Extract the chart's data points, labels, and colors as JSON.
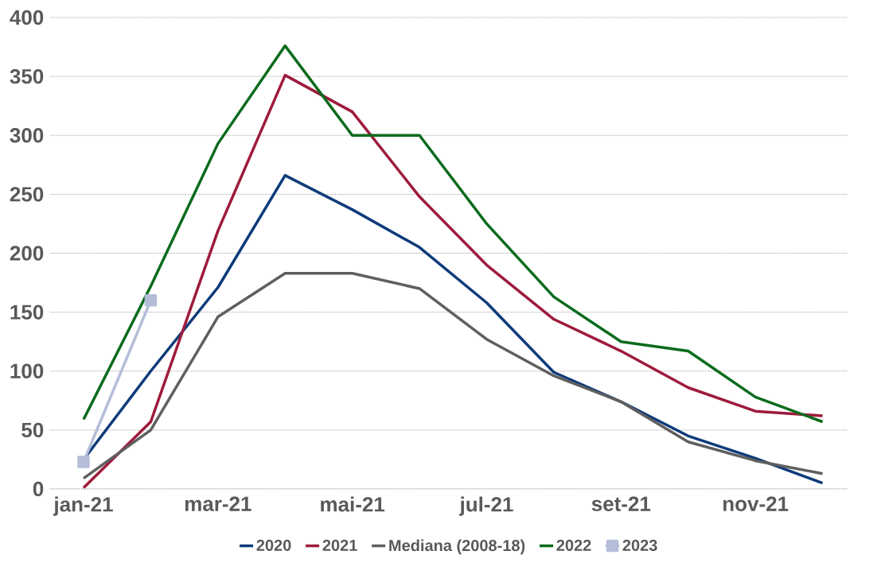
{
  "chart_data": {
    "type": "line",
    "categories": [
      "jan-21",
      null,
      "mar-21",
      null,
      "mai-21",
      null,
      "jul-21",
      null,
      "set-21",
      null,
      "nov-21",
      null
    ],
    "series": [
      {
        "name": "2020",
        "color": "#0e3b7a",
        "values": [
          25,
          100,
          171,
          266,
          237,
          205,
          158,
          99,
          74,
          45,
          26,
          5
        ]
      },
      {
        "name": "2021",
        "color": "#9e1b3c",
        "values": [
          1,
          57,
          219,
          351,
          320,
          248,
          190,
          144,
          117,
          86,
          66,
          62
        ]
      },
      {
        "name": "Mediana (2008-18)",
        "color": "#5f5f5f",
        "values": [
          9,
          50,
          146,
          183,
          183,
          170,
          127,
          96,
          74,
          40,
          24,
          13
        ]
      },
      {
        "name": "2022",
        "color": "#0b6b1c",
        "values": [
          59,
          172,
          293,
          376,
          300,
          300,
          225,
          163,
          125,
          117,
          78,
          57
        ]
      },
      {
        "name": "2023",
        "color": "#b4bed8",
        "marker": "square",
        "values": [
          23,
          160,
          null,
          null,
          null,
          null,
          null,
          null,
          null,
          null,
          null,
          null
        ]
      }
    ],
    "ylim": [
      0,
      400
    ],
    "yticks": [
      0,
      50,
      100,
      150,
      200,
      250,
      300,
      350,
      400
    ],
    "grid": "y",
    "legend": "bottom",
    "marker": "none",
    "line_style": "solid"
  }
}
